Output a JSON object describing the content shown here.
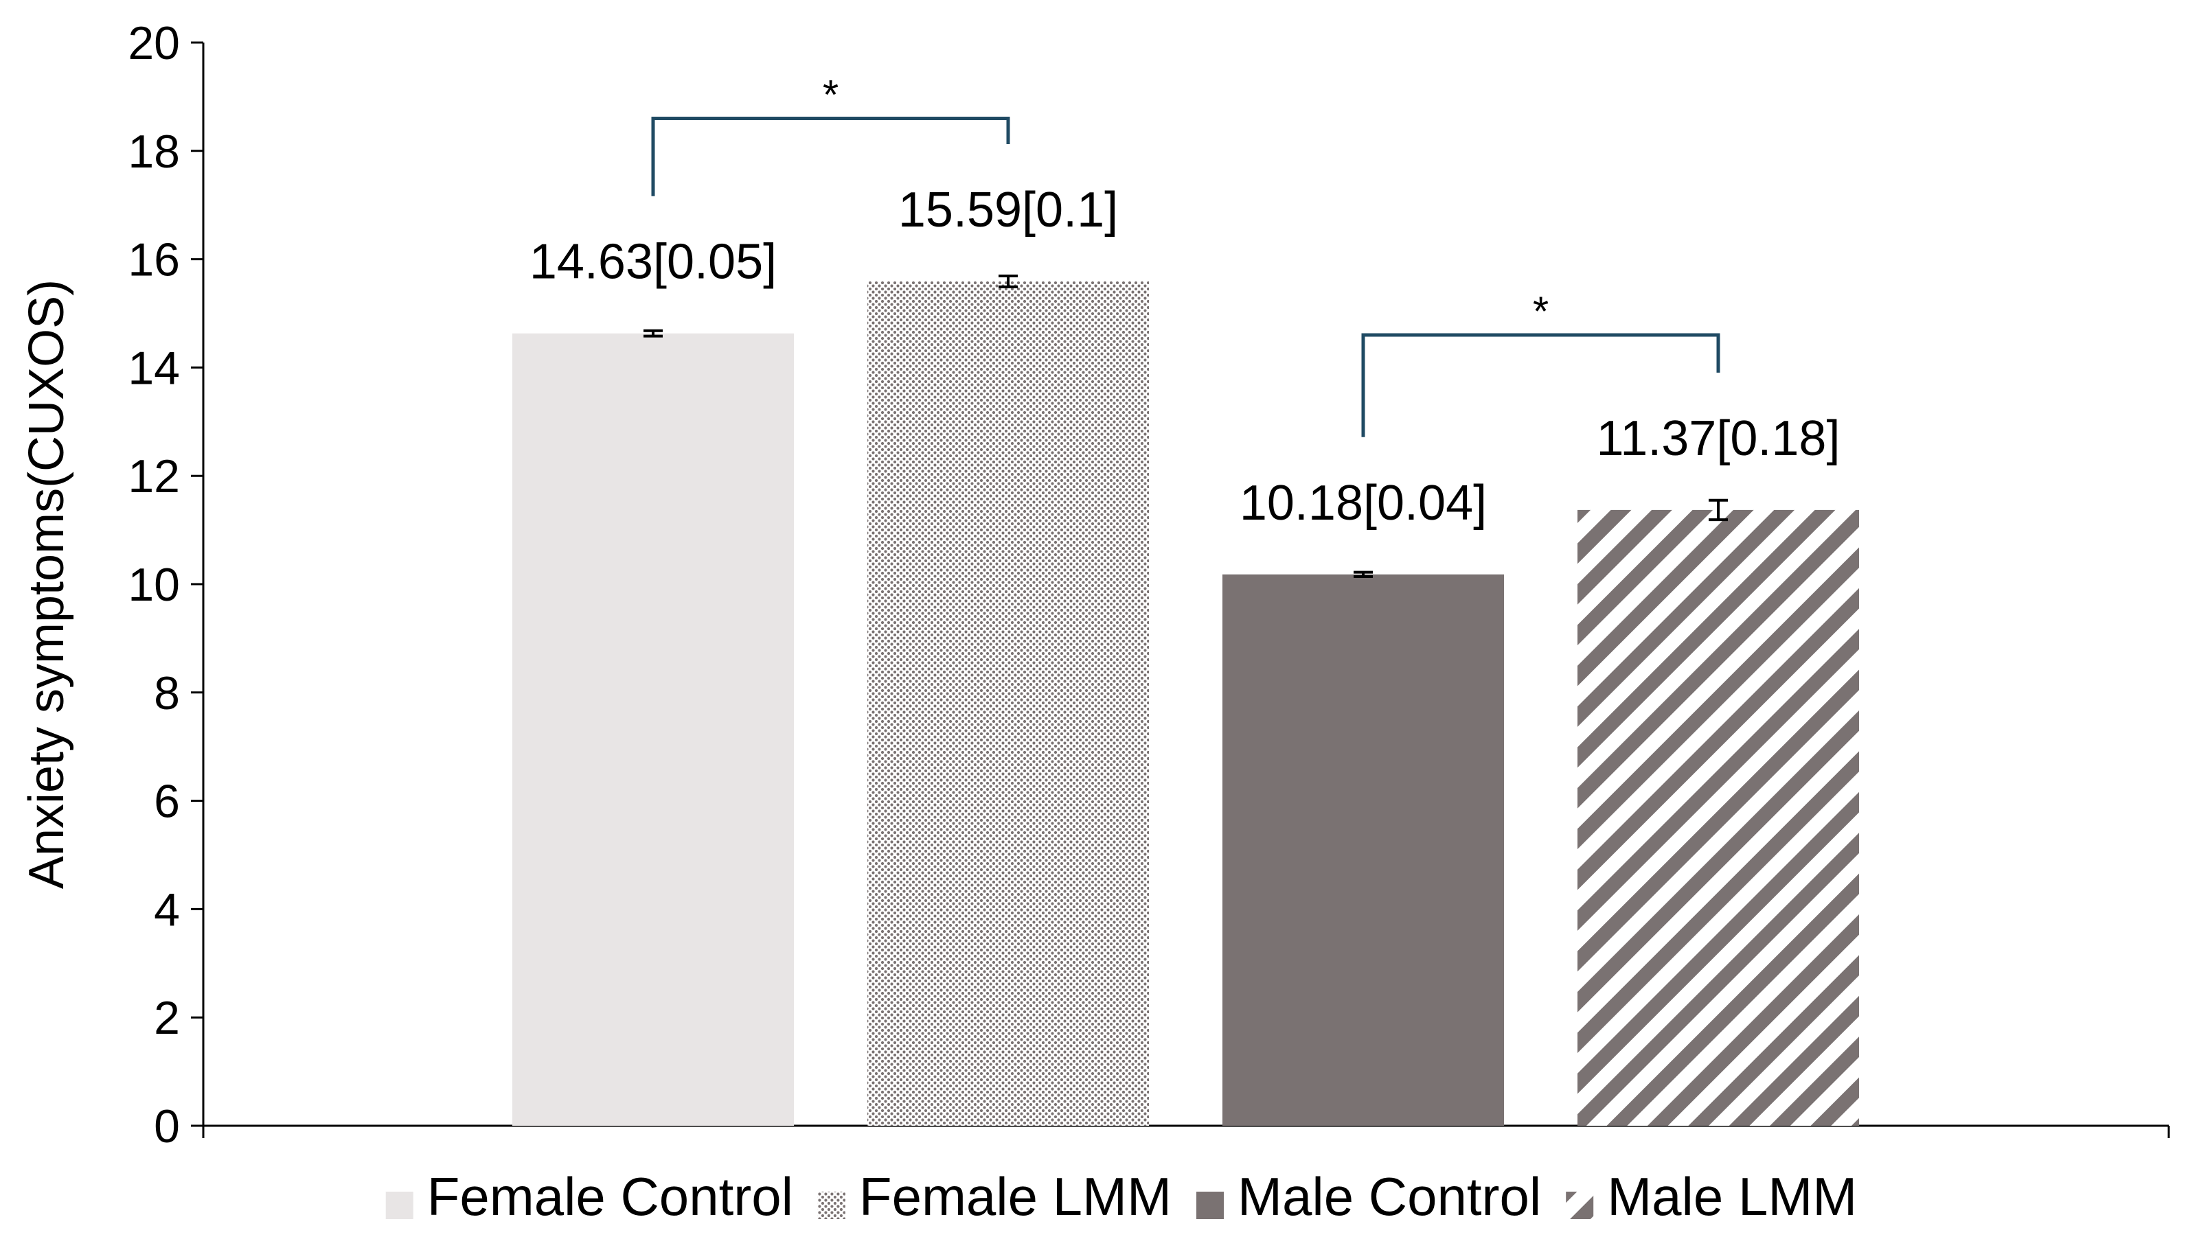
{
  "chart_data": {
    "type": "bar",
    "title": "",
    "xlabel": "",
    "ylabel": "Anxiety symptoms(CUXOS)",
    "ylim": [
      0,
      20
    ],
    "ytick_step": 2,
    "yticks": [
      "0",
      "2",
      "4",
      "6",
      "8",
      "10",
      "12",
      "14",
      "16",
      "18",
      "20"
    ],
    "grid": false,
    "legend_position": "bottom",
    "series": [
      {
        "name": "Female Control",
        "value": 14.63,
        "error": 0.05,
        "label": "14.63[0.05]",
        "color": "#e8e5e5",
        "pattern": "solid"
      },
      {
        "name": "Female LMM",
        "value": 15.59,
        "error": 0.1,
        "label": "15.59[0.1]",
        "color": "#7a7272",
        "pattern": "dots"
      },
      {
        "name": "Male Control",
        "value": 10.18,
        "error": 0.04,
        "label": "10.18[0.04]",
        "color": "#7a7272",
        "pattern": "solid"
      },
      {
        "name": "Male LMM",
        "value": 11.37,
        "error": 0.18,
        "label": "11.37[0.18]",
        "color": "#7a7272",
        "pattern": "diagonal"
      }
    ],
    "annotations": [
      {
        "from": "Female Control",
        "to": "Female LMM",
        "text": "*",
        "level": 18.6
      },
      {
        "from": "Male Control",
        "to": "Male LMM",
        "text": "*",
        "level": 14.6
      }
    ],
    "bracket_color": "#1f4a63"
  }
}
